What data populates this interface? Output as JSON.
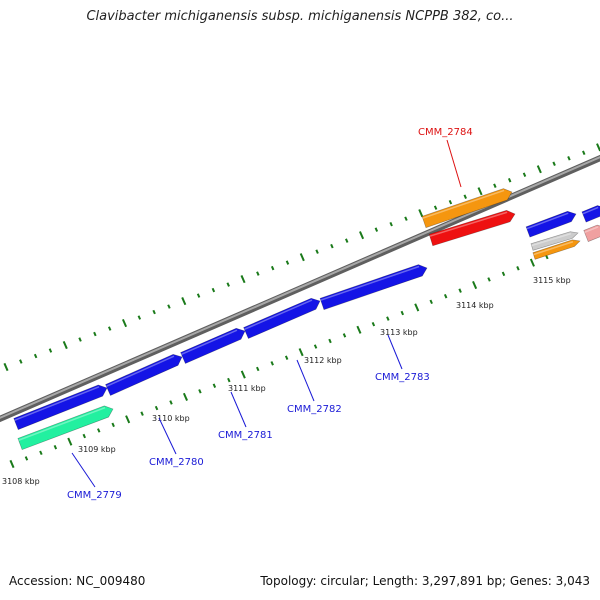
{
  "title": "Clavibacter michiganensis subsp. michiganensis NCPPB 382, co...",
  "footer": {
    "accession": "Accession: NC_009480",
    "summary": "Topology: circular; Length: 3,297,891 bp; Genes: 3,043"
  },
  "colors": {
    "background": "#ffffff",
    "backbone": "#808080",
    "tick_marks": "#1a7a1a",
    "cds_blue": "#1414e6",
    "orange": "#f5960f",
    "red": "#ee1111",
    "teal": "#22f0a0",
    "grey": "#cccccc",
    "pink": "#f0a0a0",
    "label_blue": "#1a1ad6",
    "label_red": "#dd1111"
  },
  "scale_labels": [
    "3108 kbp",
    "3109 kbp",
    "3110 kbp",
    "3111 kbp",
    "3112 kbp",
    "3113 kbp",
    "3114 kbp",
    "3115 kbp"
  ],
  "gene_labels": [
    {
      "text": "CMM_2779",
      "color": "blue"
    },
    {
      "text": "CMM_2780",
      "color": "blue"
    },
    {
      "text": "CMM_2781",
      "color": "blue"
    },
    {
      "text": "CMM_2782",
      "color": "blue"
    },
    {
      "text": "CMM_2783",
      "color": "blue"
    },
    {
      "text": "CMM_2784",
      "color": "red"
    }
  ]
}
